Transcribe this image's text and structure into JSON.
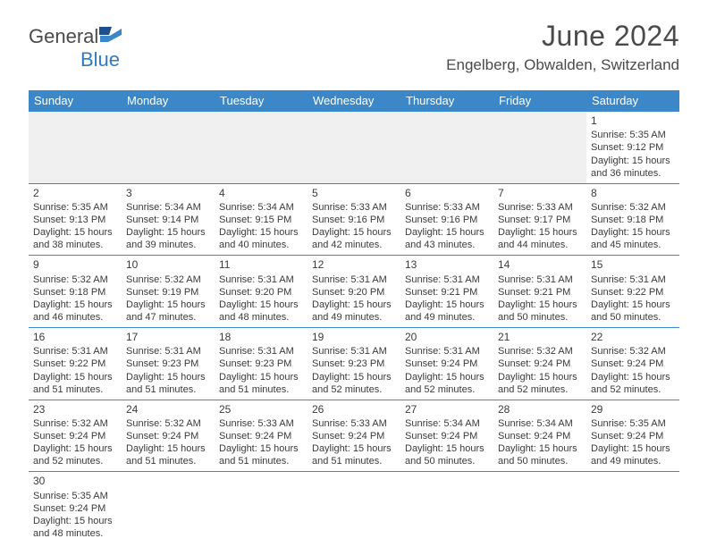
{
  "brand": {
    "name_a": "General",
    "name_b": "Blue"
  },
  "title": "June 2024",
  "location": "Engelberg, Obwalden, Switzerland",
  "colors": {
    "header_bg": "#3b87c8",
    "header_text": "#ffffff",
    "text": "#3a3a3a",
    "divider": "#3b87c8",
    "empty_bg": "#f0f0f0"
  },
  "weekdays": [
    "Sunday",
    "Monday",
    "Tuesday",
    "Wednesday",
    "Thursday",
    "Friday",
    "Saturday"
  ],
  "weeks": [
    [
      null,
      null,
      null,
      null,
      null,
      null,
      {
        "n": "1",
        "sr": "Sunrise: 5:35 AM",
        "ss": "Sunset: 9:12 PM",
        "d1": "Daylight: 15 hours",
        "d2": "and 36 minutes."
      }
    ],
    [
      {
        "n": "2",
        "sr": "Sunrise: 5:35 AM",
        "ss": "Sunset: 9:13 PM",
        "d1": "Daylight: 15 hours",
        "d2": "and 38 minutes."
      },
      {
        "n": "3",
        "sr": "Sunrise: 5:34 AM",
        "ss": "Sunset: 9:14 PM",
        "d1": "Daylight: 15 hours",
        "d2": "and 39 minutes."
      },
      {
        "n": "4",
        "sr": "Sunrise: 5:34 AM",
        "ss": "Sunset: 9:15 PM",
        "d1": "Daylight: 15 hours",
        "d2": "and 40 minutes."
      },
      {
        "n": "5",
        "sr": "Sunrise: 5:33 AM",
        "ss": "Sunset: 9:16 PM",
        "d1": "Daylight: 15 hours",
        "d2": "and 42 minutes."
      },
      {
        "n": "6",
        "sr": "Sunrise: 5:33 AM",
        "ss": "Sunset: 9:16 PM",
        "d1": "Daylight: 15 hours",
        "d2": "and 43 minutes."
      },
      {
        "n": "7",
        "sr": "Sunrise: 5:33 AM",
        "ss": "Sunset: 9:17 PM",
        "d1": "Daylight: 15 hours",
        "d2": "and 44 minutes."
      },
      {
        "n": "8",
        "sr": "Sunrise: 5:32 AM",
        "ss": "Sunset: 9:18 PM",
        "d1": "Daylight: 15 hours",
        "d2": "and 45 minutes."
      }
    ],
    [
      {
        "n": "9",
        "sr": "Sunrise: 5:32 AM",
        "ss": "Sunset: 9:18 PM",
        "d1": "Daylight: 15 hours",
        "d2": "and 46 minutes."
      },
      {
        "n": "10",
        "sr": "Sunrise: 5:32 AM",
        "ss": "Sunset: 9:19 PM",
        "d1": "Daylight: 15 hours",
        "d2": "and 47 minutes."
      },
      {
        "n": "11",
        "sr": "Sunrise: 5:31 AM",
        "ss": "Sunset: 9:20 PM",
        "d1": "Daylight: 15 hours",
        "d2": "and 48 minutes."
      },
      {
        "n": "12",
        "sr": "Sunrise: 5:31 AM",
        "ss": "Sunset: 9:20 PM",
        "d1": "Daylight: 15 hours",
        "d2": "and 49 minutes."
      },
      {
        "n": "13",
        "sr": "Sunrise: 5:31 AM",
        "ss": "Sunset: 9:21 PM",
        "d1": "Daylight: 15 hours",
        "d2": "and 49 minutes."
      },
      {
        "n": "14",
        "sr": "Sunrise: 5:31 AM",
        "ss": "Sunset: 9:21 PM",
        "d1": "Daylight: 15 hours",
        "d2": "and 50 minutes."
      },
      {
        "n": "15",
        "sr": "Sunrise: 5:31 AM",
        "ss": "Sunset: 9:22 PM",
        "d1": "Daylight: 15 hours",
        "d2": "and 50 minutes."
      }
    ],
    [
      {
        "n": "16",
        "sr": "Sunrise: 5:31 AM",
        "ss": "Sunset: 9:22 PM",
        "d1": "Daylight: 15 hours",
        "d2": "and 51 minutes."
      },
      {
        "n": "17",
        "sr": "Sunrise: 5:31 AM",
        "ss": "Sunset: 9:23 PM",
        "d1": "Daylight: 15 hours",
        "d2": "and 51 minutes."
      },
      {
        "n": "18",
        "sr": "Sunrise: 5:31 AM",
        "ss": "Sunset: 9:23 PM",
        "d1": "Daylight: 15 hours",
        "d2": "and 51 minutes."
      },
      {
        "n": "19",
        "sr": "Sunrise: 5:31 AM",
        "ss": "Sunset: 9:23 PM",
        "d1": "Daylight: 15 hours",
        "d2": "and 52 minutes."
      },
      {
        "n": "20",
        "sr": "Sunrise: 5:31 AM",
        "ss": "Sunset: 9:24 PM",
        "d1": "Daylight: 15 hours",
        "d2": "and 52 minutes."
      },
      {
        "n": "21",
        "sr": "Sunrise: 5:32 AM",
        "ss": "Sunset: 9:24 PM",
        "d1": "Daylight: 15 hours",
        "d2": "and 52 minutes."
      },
      {
        "n": "22",
        "sr": "Sunrise: 5:32 AM",
        "ss": "Sunset: 9:24 PM",
        "d1": "Daylight: 15 hours",
        "d2": "and 52 minutes."
      }
    ],
    [
      {
        "n": "23",
        "sr": "Sunrise: 5:32 AM",
        "ss": "Sunset: 9:24 PM",
        "d1": "Daylight: 15 hours",
        "d2": "and 52 minutes."
      },
      {
        "n": "24",
        "sr": "Sunrise: 5:32 AM",
        "ss": "Sunset: 9:24 PM",
        "d1": "Daylight: 15 hours",
        "d2": "and 51 minutes."
      },
      {
        "n": "25",
        "sr": "Sunrise: 5:33 AM",
        "ss": "Sunset: 9:24 PM",
        "d1": "Daylight: 15 hours",
        "d2": "and 51 minutes."
      },
      {
        "n": "26",
        "sr": "Sunrise: 5:33 AM",
        "ss": "Sunset: 9:24 PM",
        "d1": "Daylight: 15 hours",
        "d2": "and 51 minutes."
      },
      {
        "n": "27",
        "sr": "Sunrise: 5:34 AM",
        "ss": "Sunset: 9:24 PM",
        "d1": "Daylight: 15 hours",
        "d2": "and 50 minutes."
      },
      {
        "n": "28",
        "sr": "Sunrise: 5:34 AM",
        "ss": "Sunset: 9:24 PM",
        "d1": "Daylight: 15 hours",
        "d2": "and 50 minutes."
      },
      {
        "n": "29",
        "sr": "Sunrise: 5:35 AM",
        "ss": "Sunset: 9:24 PM",
        "d1": "Daylight: 15 hours",
        "d2": "and 49 minutes."
      }
    ],
    [
      {
        "n": "30",
        "sr": "Sunrise: 5:35 AM",
        "ss": "Sunset: 9:24 PM",
        "d1": "Daylight: 15 hours",
        "d2": "and 48 minutes."
      },
      null,
      null,
      null,
      null,
      null,
      null
    ]
  ]
}
